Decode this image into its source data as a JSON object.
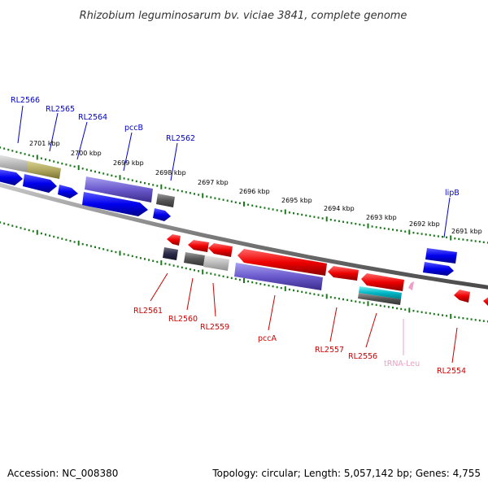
{
  "title": "Rhizobium leguminosarum bv. viciae 3841, complete genome",
  "footer": {
    "accession": "Accession: NC_008380",
    "topology": "Topology: circular; Length: 5,057,142 bp; Genes: 4,755"
  },
  "colors": {
    "forward_label": "#0000cc",
    "reverse_label": "#cc0000",
    "trna_label": "#e8a0c0",
    "tick": "#1a7a1a",
    "backbone": "#8a8a8a"
  },
  "ticks": [
    "2701 kbp",
    "2700 kbp",
    "2699 kbp",
    "2698 kbp",
    "2697 kbp",
    "2696 kbp",
    "2695 kbp",
    "2694 kbp",
    "2693 kbp",
    "2692 kbp",
    "2691 kbp"
  ],
  "forward_labels": [
    "RL2566",
    "RL2565",
    "RL2564",
    "pccB",
    "RL2562",
    "lipB"
  ],
  "reverse_labels": [
    "RL2561",
    "RL2560",
    "RL2559",
    "pccA",
    "RL2557",
    "RL2556",
    "tRNA-Leu",
    "RL2554"
  ]
}
